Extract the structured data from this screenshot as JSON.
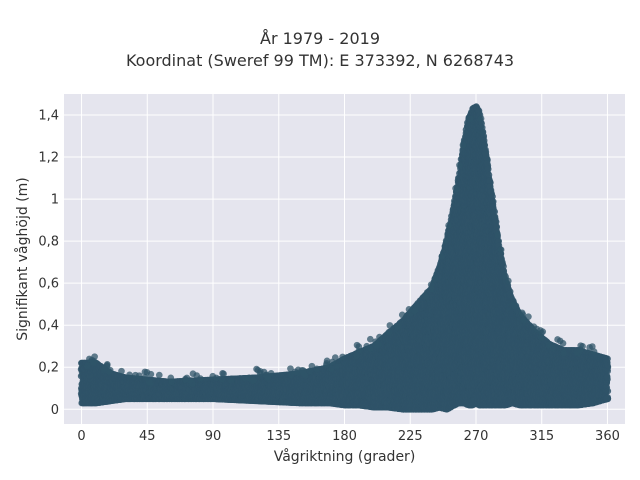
{
  "chart_data": {
    "type": "scatter",
    "title": "År 1979 - 2019",
    "subtitle": "Koordinat (Sweref 99 TM): E 373392, N 6268743",
    "xlabel": "Vågriktning (grader)",
    "ylabel": "Signifikant våghöjd (m)",
    "xlim": [
      -12,
      372
    ],
    "ylim": [
      -0.07,
      1.5
    ],
    "xticks": [
      0,
      45,
      90,
      135,
      180,
      225,
      270,
      315,
      360
    ],
    "xtick_labels": [
      "0",
      "45",
      "90",
      "135",
      "180",
      "225",
      "270",
      "315",
      "360"
    ],
    "yticks": [
      0,
      0.2,
      0.4,
      0.6,
      0.8,
      1.0,
      1.2,
      1.4
    ],
    "ytick_labels": [
      "0",
      "0,2",
      "0,4",
      "0,6",
      "0,8",
      "1",
      "1,2",
      "1,4"
    ],
    "grid": true,
    "point_color": "#2f5468",
    "plot_background": "#e5e5ee",
    "envelope": {
      "x": [
        0,
        10,
        20,
        30,
        45,
        60,
        90,
        120,
        150,
        170,
        180,
        190,
        200,
        210,
        220,
        225,
        230,
        240,
        245,
        250,
        255,
        258,
        262,
        265,
        268,
        270,
        272,
        275,
        278,
        280,
        285,
        290,
        295,
        300,
        310,
        320,
        330,
        340,
        350,
        360
      ],
      "y_max": [
        0.22,
        0.22,
        0.17,
        0.15,
        0.14,
        0.13,
        0.14,
        0.15,
        0.17,
        0.2,
        0.24,
        0.27,
        0.3,
        0.36,
        0.42,
        0.46,
        0.5,
        0.58,
        0.68,
        0.8,
        0.97,
        1.1,
        1.28,
        1.38,
        1.43,
        1.44,
        1.42,
        1.3,
        1.17,
        1.06,
        0.82,
        0.62,
        0.52,
        0.45,
        0.37,
        0.31,
        0.28,
        0.28,
        0.26,
        0.24
      ],
      "y_min": [
        0.03,
        0.03,
        0.04,
        0.05,
        0.05,
        0.05,
        0.05,
        0.04,
        0.03,
        0.03,
        0.02,
        0.02,
        0.01,
        0.01,
        0.0,
        0.0,
        0.0,
        0.0,
        0.01,
        0.0,
        0.02,
        0.03,
        0.03,
        0.02,
        0.02,
        0.03,
        0.02,
        0.02,
        0.02,
        0.02,
        0.02,
        0.02,
        0.03,
        0.02,
        0.02,
        0.02,
        0.02,
        0.02,
        0.03,
        0.05
      ]
    }
  }
}
